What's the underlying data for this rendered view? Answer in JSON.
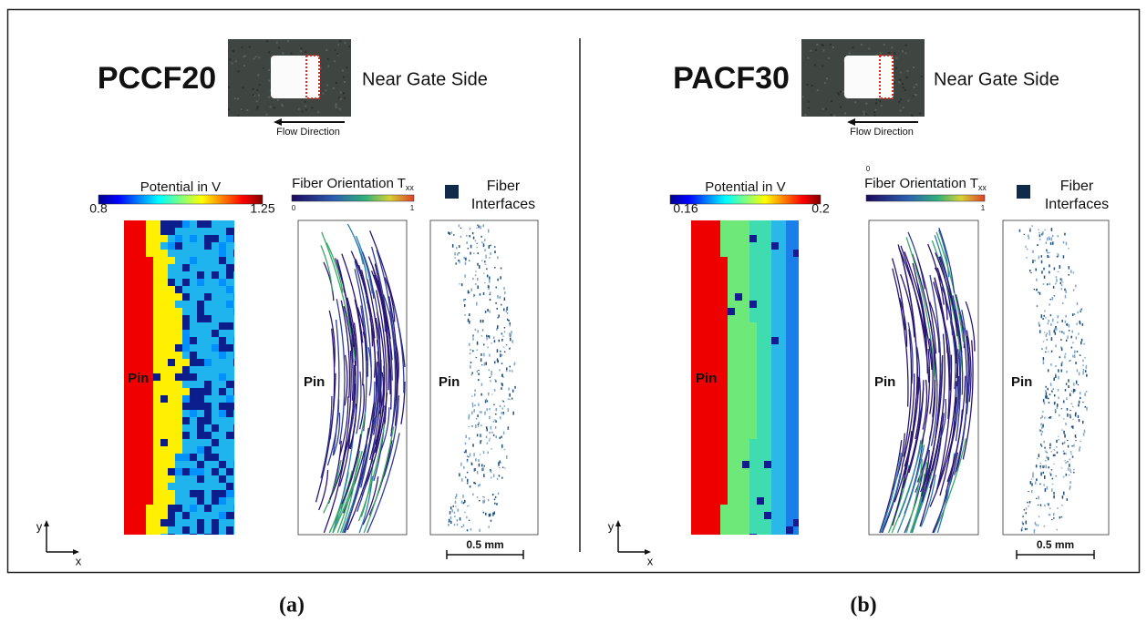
{
  "panels": [
    {
      "sample": "PCCF20",
      "side": "Near Gate Side",
      "flow": "Flow Direction",
      "potential": {
        "title": "Potential in V",
        "min": "0.8",
        "max": "1.25"
      },
      "fiber": {
        "title": "Fiber Orientation T",
        "subscript": "xx",
        "min": "0",
        "max": "1"
      },
      "interfaces": {
        "line1": "Fiber",
        "line2": "Interfaces"
      },
      "pin": "Pin",
      "axis_y": "y",
      "axis_x": "x",
      "scale": "0.5 mm",
      "caption": "(a)"
    },
    {
      "sample": "PACF30",
      "side": "Near Gate Side",
      "flow": "Flow Direction",
      "potential": {
        "title": "Potential in V",
        "min": "0.16",
        "max": "0.2"
      },
      "fiber": {
        "title": "Fiber Orientation T",
        "subscript": "xx",
        "min": "0",
        "max": "1"
      },
      "interfaces": {
        "line1": "Fiber",
        "line2": "Interfaces"
      },
      "pin": "Pin",
      "axis_y": "y",
      "axis_x": "x",
      "scale": "0.5 mm",
      "caption": "(b)"
    }
  ]
}
